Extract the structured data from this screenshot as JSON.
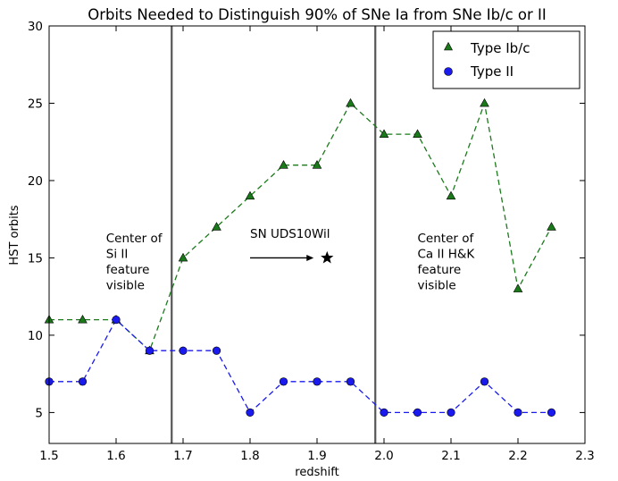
{
  "chart_data": {
    "type": "line",
    "title": "Orbits Needed to Distinguish 90% of SNe Ia from SNe Ib/c or II",
    "xlabel": "redshift",
    "ylabel": "HST orbits",
    "xlim": [
      1.5,
      2.3
    ],
    "ylim": [
      3,
      30
    ],
    "xticks": [
      1.5,
      1.6,
      1.7,
      1.8,
      1.9,
      2.0,
      2.1,
      2.2,
      2.3
    ],
    "xtick_labels": [
      "1.5",
      "1.6",
      "1.7",
      "1.8",
      "1.9",
      "2.0",
      "2.1",
      "2.2",
      "2.3"
    ],
    "yticks": [
      5,
      10,
      15,
      20,
      25,
      30
    ],
    "ytick_labels": [
      "5",
      "10",
      "15",
      "20",
      "25",
      "30"
    ],
    "grid": false,
    "legend_position": "top-right",
    "series": [
      {
        "name": "Type Ib/c",
        "color": "#1a7a1a",
        "marker": "triangle",
        "line_style": "dashed",
        "x": [
          1.5,
          1.55,
          1.6,
          1.65,
          1.7,
          1.75,
          1.8,
          1.85,
          1.9,
          1.95,
          2.0,
          2.05,
          2.1,
          2.15,
          2.2,
          2.25
        ],
        "y": [
          11,
          11,
          11,
          9,
          15,
          17,
          19,
          21,
          21,
          25,
          23,
          23,
          19,
          25,
          13,
          17
        ]
      },
      {
        "name": "Type II",
        "color": "#1a1aee",
        "marker": "circle",
        "line_style": "dashed",
        "x": [
          1.5,
          1.55,
          1.6,
          1.65,
          1.7,
          1.75,
          1.8,
          1.85,
          1.9,
          1.95,
          2.0,
          2.05,
          2.1,
          2.15,
          2.2,
          2.25
        ],
        "y": [
          7,
          7,
          11,
          9,
          9,
          9,
          5,
          7,
          7,
          7,
          5,
          5,
          5,
          7,
          5,
          5
        ]
      }
    ],
    "vertical_lines": [
      1.683,
      1.987
    ],
    "star_marker": {
      "x": 1.915,
      "y": 15
    },
    "annotations": [
      {
        "lines": [
          "Center of",
          "Si II",
          "feature",
          "visible"
        ],
        "x": 1.585,
        "y": 16.0
      },
      {
        "lines": [
          "SN UDS10Wil"
        ],
        "x": 1.8,
        "y": 16.3
      },
      {
        "lines": [
          "Center of",
          "Ca II H&K",
          "feature",
          "visible"
        ],
        "x": 2.05,
        "y": 16.0
      }
    ]
  }
}
